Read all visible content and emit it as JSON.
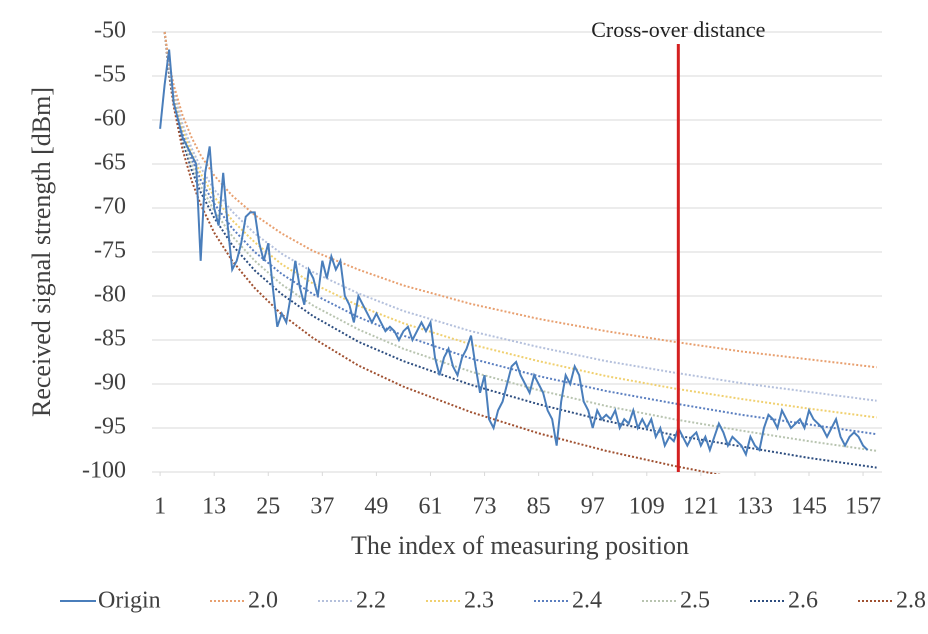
{
  "chart_data": {
    "type": "line",
    "y_label": "Received signal strength [dBm]",
    "x_label": "The index of measuring position",
    "annotation": {
      "text": "Cross-over distance",
      "x": 116,
      "color": "#d42020"
    },
    "xlim": [
      -0.8,
      161.2
    ],
    "xticks": [
      1,
      13,
      25,
      37,
      49,
      61,
      73,
      85,
      97,
      109,
      121,
      133,
      145,
      157
    ],
    "ylim": [
      -100,
      -50
    ],
    "yticks": [
      -50,
      -55,
      -60,
      -65,
      -70,
      -75,
      -80,
      -85,
      -90,
      -95,
      -100
    ],
    "grid": true,
    "legend": "bottom",
    "series": [
      {
        "name": "Origin",
        "color": "#4a7ebb",
        "style": "solid",
        "x": [
          1,
          2,
          3,
          4,
          5,
          6,
          7,
          8,
          9,
          10,
          11,
          12,
          13,
          14,
          15,
          16,
          17,
          18,
          19,
          20,
          21,
          22,
          23,
          24,
          25,
          26,
          27,
          28,
          29,
          30,
          31,
          32,
          33,
          34,
          35,
          36,
          37,
          38,
          39,
          40,
          41,
          42,
          43,
          44,
          45,
          46,
          47,
          48,
          49,
          50,
          51,
          52,
          53,
          54,
          55,
          56,
          57,
          58,
          59,
          60,
          61,
          62,
          63,
          64,
          65,
          66,
          67,
          68,
          69,
          70,
          71,
          72,
          73,
          74,
          75,
          76,
          77,
          78,
          79,
          80,
          81,
          82,
          83,
          84,
          85,
          86,
          87,
          88,
          89,
          90,
          91,
          92,
          93,
          94,
          95,
          96,
          97,
          98,
          99,
          100,
          101,
          102,
          103,
          104,
          105,
          106,
          107,
          108,
          109,
          110,
          111,
          112,
          113,
          114,
          115,
          116,
          117,
          118,
          119,
          120,
          121,
          122,
          123,
          124,
          125,
          126,
          127,
          128,
          129,
          130,
          131,
          132,
          133,
          134,
          135,
          136,
          137,
          138,
          139,
          140,
          141,
          142,
          143,
          144,
          145,
          146,
          147,
          148,
          149,
          150,
          151,
          152,
          153,
          154,
          155,
          156,
          157,
          158
        ],
        "values": [
          -61,
          -56,
          -52,
          -58,
          -60,
          -62,
          -63,
          -64,
          -65,
          -76,
          -66,
          -63,
          -70,
          -72,
          -66,
          -72,
          -77,
          -76,
          -74,
          -71,
          -70.5,
          -70.5,
          -74,
          -76,
          -74,
          -79,
          -83.5,
          -82,
          -83,
          -80,
          -76,
          -79,
          -81,
          -77,
          -78,
          -80,
          -76,
          -78,
          -75.5,
          -77,
          -76,
          -80,
          -81,
          -83,
          -80,
          -81,
          -82,
          -83,
          -82,
          -83,
          -84,
          -83.5,
          -84,
          -85,
          -84,
          -83.5,
          -85,
          -84,
          -83,
          -84,
          -83,
          -87,
          -89,
          -87,
          -86,
          -88,
          -89,
          -87,
          -86,
          -84.5,
          -88,
          -91,
          -89,
          -94,
          -95,
          -93,
          -92,
          -90,
          -88,
          -87.5,
          -89,
          -90,
          -91,
          -89,
          -90,
          -91,
          -93,
          -94,
          -97,
          -92,
          -89,
          -90,
          -88,
          -89,
          -92,
          -93,
          -95,
          -93,
          -94,
          -93.5,
          -94,
          -93,
          -95,
          -94,
          -94.5,
          -93,
          -95,
          -94,
          -95,
          -94,
          -96,
          -95,
          -97,
          -96,
          -96.5,
          -95,
          -96,
          -97,
          -96,
          -95.5,
          -97,
          -96,
          -97.5,
          -96,
          -94.5,
          -95.5,
          -97,
          -96,
          -96.5,
          -97,
          -98,
          -96,
          -97,
          -97.5,
          -95,
          -93.5,
          -94,
          -95,
          -93,
          -94,
          -95,
          -94.5,
          -94,
          -95,
          -93,
          -94,
          -94.5,
          -95,
          -96,
          -95,
          -94,
          -96,
          -97,
          -96,
          -95.5,
          -96,
          -97,
          -97.5
        ]
      },
      {
        "name": "2.0",
        "color": "#e8a070",
        "style": "dotted",
        "x": [
          2,
          3,
          4,
          6,
          8,
          10,
          13,
          17,
          22,
          28,
          35,
          45,
          55,
          70,
          85,
          100,
          115,
          130,
          145,
          160
        ],
        "values": [
          -50,
          -53.5,
          -56,
          -59.5,
          -62,
          -64,
          -66.3,
          -68.6,
          -70.8,
          -72.9,
          -74.9,
          -77,
          -78.8,
          -80.9,
          -82.6,
          -84,
          -85.2,
          -86.3,
          -87.2,
          -88.1
        ]
      },
      {
        "name": "2.2",
        "color": "#b4c0dc",
        "style": "dotted",
        "x": [
          2,
          3,
          4,
          6,
          8,
          10,
          13,
          17,
          22,
          28,
          35,
          45,
          55,
          70,
          85,
          100,
          115,
          130,
          145,
          160
        ],
        "values": [
          -50,
          -53.9,
          -56.6,
          -60.5,
          -63.2,
          -65.4,
          -67.9,
          -70.4,
          -72.9,
          -75.2,
          -77.3,
          -79.7,
          -81.7,
          -84,
          -85.8,
          -87.4,
          -88.7,
          -89.9,
          -90.9,
          -91.9
        ]
      },
      {
        "name": "2.3",
        "color": "#f0d070",
        "style": "dotted",
        "x": [
          2,
          3,
          4,
          6,
          8,
          10,
          13,
          17,
          22,
          28,
          35,
          45,
          55,
          70,
          85,
          100,
          115,
          130,
          145,
          160
        ],
        "values": [
          -50,
          -54,
          -56.9,
          -61,
          -63.8,
          -66.1,
          -68.7,
          -71.4,
          -73.9,
          -76.4,
          -78.6,
          -81.1,
          -83.1,
          -85.5,
          -87.4,
          -89.1,
          -90.5,
          -91.7,
          -92.8,
          -93.8
        ]
      },
      {
        "name": "2.4",
        "color": "#5b7fc0",
        "style": "dotted",
        "x": [
          2,
          3,
          4,
          6,
          8,
          10,
          13,
          17,
          22,
          28,
          35,
          45,
          55,
          70,
          85,
          100,
          115,
          130,
          145,
          160
        ],
        "values": [
          -50,
          -54.2,
          -57.2,
          -61.4,
          -64.4,
          -66.8,
          -69.5,
          -72.3,
          -75,
          -77.5,
          -79.8,
          -82.4,
          -84.5,
          -87.1,
          -89.1,
          -90.8,
          -92.2,
          -93.5,
          -94.6,
          -95.7
        ]
      },
      {
        "name": "2.5",
        "color": "#b8c4b0",
        "style": "dotted",
        "x": [
          2,
          3,
          4,
          6,
          8,
          10,
          13,
          17,
          22,
          28,
          35,
          45,
          55,
          70,
          85,
          100,
          115,
          130,
          145,
          160
        ],
        "values": [
          -50,
          -54.4,
          -57.5,
          -61.9,
          -65.1,
          -67.5,
          -70.3,
          -73.2,
          -76,
          -78.7,
          -81.1,
          -83.8,
          -86,
          -88.6,
          -90.7,
          -92.5,
          -94,
          -95.3,
          -96.5,
          -97.6
        ]
      },
      {
        "name": "2.6",
        "color": "#2e4e80",
        "style": "dotted",
        "x": [
          2,
          3,
          4,
          6,
          8,
          10,
          13,
          17,
          22,
          28,
          35,
          45,
          55,
          70,
          85,
          100,
          115,
          130,
          145,
          160
        ],
        "values": [
          -50,
          -54.6,
          -57.8,
          -62.4,
          -65.7,
          -68.2,
          -71.1,
          -74.2,
          -77.1,
          -79.8,
          -82.3,
          -85.2,
          -87.4,
          -90.1,
          -92.3,
          -94.2,
          -95.8,
          -97.1,
          -98.4,
          -99.5
        ]
      },
      {
        "name": "2.8",
        "color": "#a05030",
        "style": "dotted",
        "x": [
          2,
          3,
          4,
          6,
          8,
          10,
          13,
          17,
          22,
          28,
          35,
          45,
          55,
          70,
          85,
          100,
          115,
          130,
          145,
          160
        ],
        "values": [
          -50,
          -54.9,
          -58.4,
          -63.4,
          -66.9,
          -69.6,
          -72.8,
          -76,
          -79.1,
          -82.1,
          -84.8,
          -87.9,
          -90.3,
          -93.2,
          -95.6,
          -97.6,
          -99.3,
          -100.8,
          -102.1,
          -103.3
        ]
      }
    ]
  }
}
